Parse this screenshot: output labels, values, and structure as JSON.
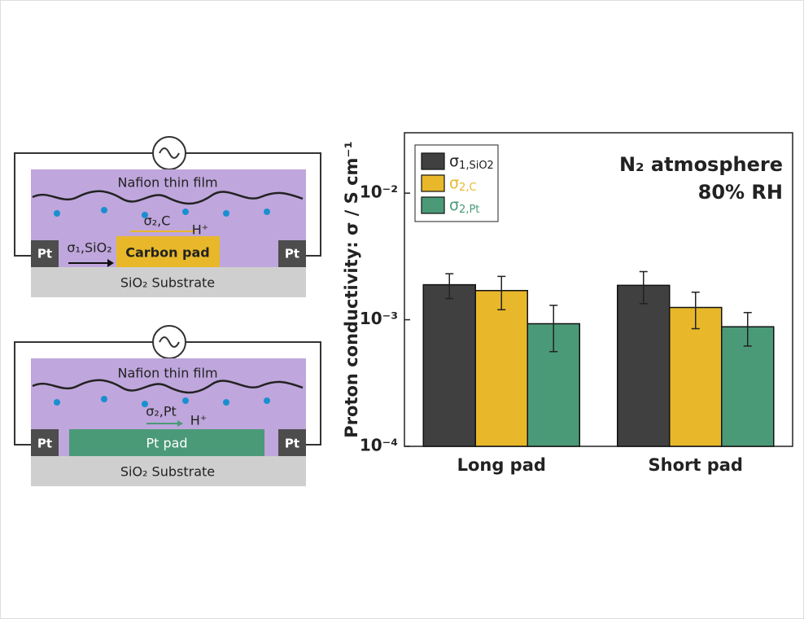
{
  "chart_data": {
    "type": "bar",
    "log_scale": true,
    "y_label": "Proton conductivity: σ / S cm⁻¹",
    "categories": [
      "Long pad",
      "Short pad"
    ],
    "series": [
      {
        "name": {
          "symbol": "σ",
          "subscript": "1,SiO2"
        },
        "color": "#404040",
        "values": [
          0.00189,
          0.00187
        ],
        "errors": [
          0.00042,
          0.00053
        ]
      },
      {
        "name": {
          "symbol": "σ",
          "subscript": "2,C"
        },
        "color": "#e8b82a",
        "values": [
          0.0017,
          0.00125
        ],
        "errors": [
          0.0005,
          0.0004
        ]
      },
      {
        "name": {
          "symbol": "σ",
          "subscript": "2,Pt"
        },
        "color": "#4a9a78",
        "values": [
          0.00093,
          0.00088
        ],
        "errors": [
          0.00037,
          0.00026
        ]
      }
    ],
    "legend_text_colors": [
      "#222222",
      "#e8b82a",
      "#4a9a78"
    ],
    "ylim": [
      0.0001,
      0.03
    ],
    "yticks": [
      {
        "value": 0.0001,
        "label": "10⁻⁴"
      },
      {
        "value": 0.001,
        "label": "10⁻³"
      },
      {
        "value": 0.01,
        "label": "10⁻²"
      }
    ],
    "annotations": [
      "N₂ atmosphere",
      "80% RH"
    ],
    "legend_position": "upper left"
  },
  "diagram": {
    "top": {
      "film": "Nafion thin film",
      "pt_left": "Pt",
      "pt_right": "Pt",
      "pad": "Carbon pad",
      "substrate": "SiO₂ Substrate",
      "sigma_substrate": "σ₁,SiO₂",
      "sigma_pad": "σ₂,C",
      "proton": "H⁺"
    },
    "bottom": {
      "film": "Nafion thin film",
      "pt_left": "Pt",
      "pt_right": "Pt",
      "pad": "Pt pad",
      "substrate": "SiO₂ Substrate",
      "sigma_pad": "σ₂,Pt",
      "proton": "H⁺"
    }
  }
}
